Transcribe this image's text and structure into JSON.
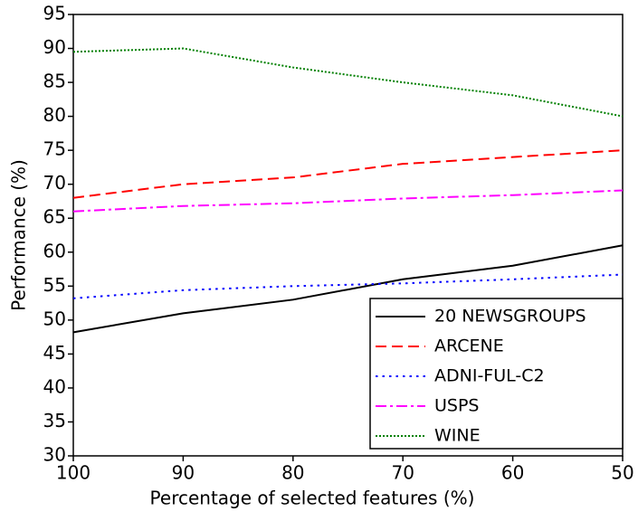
{
  "chart_data": {
    "type": "line",
    "x_label": "Percentage of selected features (%)",
    "y_label": "Performance (%)",
    "x": [
      100,
      90,
      80,
      70,
      60,
      50
    ],
    "xlim": [
      100,
      50
    ],
    "xticks": [
      100,
      90,
      80,
      70,
      60,
      50
    ],
    "ylim": [
      30,
      95
    ],
    "yticks": [
      30,
      35,
      40,
      45,
      50,
      55,
      60,
      65,
      70,
      75,
      80,
      85,
      90,
      95
    ],
    "legend": "lower right",
    "series": [
      {
        "name": "20 NEWSGROUPS",
        "color": "#000000",
        "dash": "solid",
        "values": [
          48.2,
          51,
          53,
          56,
          58,
          61
        ]
      },
      {
        "name": "ARCENE",
        "color": "#ff0000",
        "dash": "dashed",
        "values": [
          68,
          70,
          71,
          73,
          74,
          75
        ]
      },
      {
        "name": "ADNI-FUL-C2",
        "color": "#0000ff",
        "dash": "dotted",
        "values": [
          53.2,
          54.4,
          55,
          55.4,
          56,
          56.7
        ]
      },
      {
        "name": "USPS",
        "color": "#ff00ff",
        "dash": "dashdot",
        "values": [
          66,
          66.8,
          67.2,
          67.9,
          68.4,
          69.1
        ]
      },
      {
        "name": "WINE",
        "color": "#008000",
        "dash": "densedot",
        "values": [
          89.5,
          90,
          87.2,
          85,
          83.1,
          80
        ]
      }
    ]
  }
}
